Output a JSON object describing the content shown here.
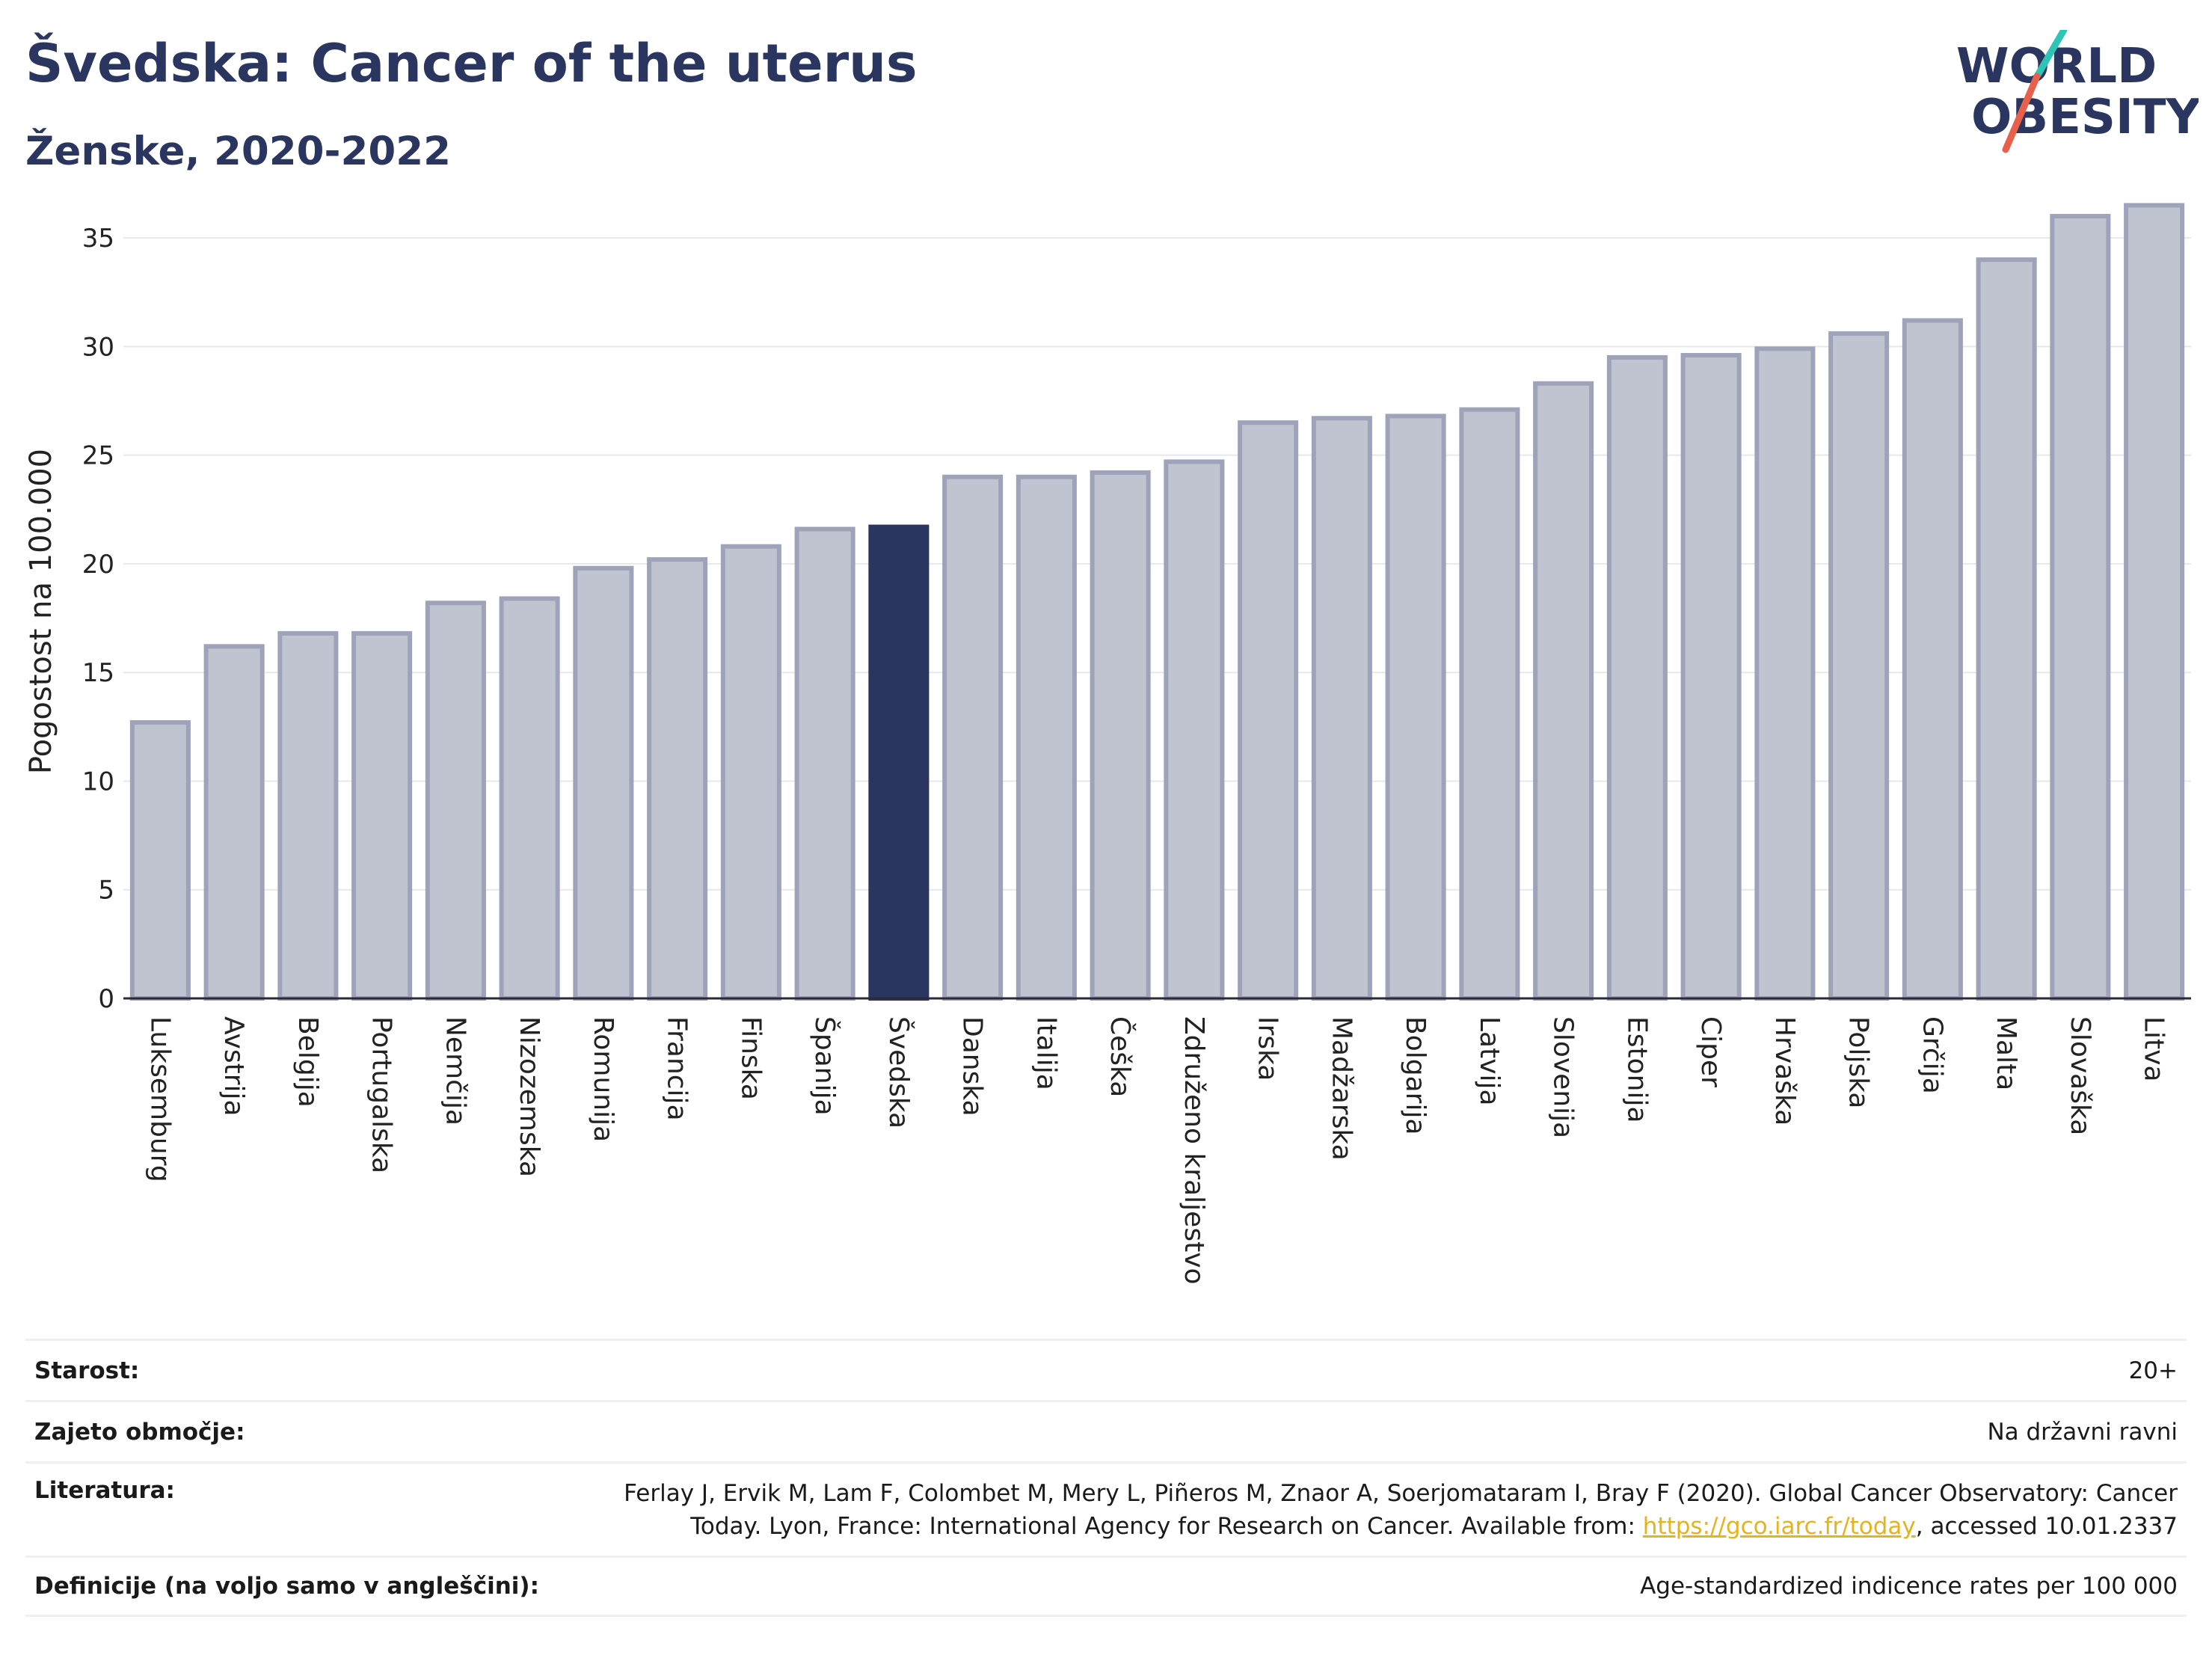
{
  "header": {
    "title": "Švedska: Cancer of the uterus",
    "subtitle": "Ženske, 2020-2022"
  },
  "logo": {
    "line1": "WORLD",
    "line2": "OBESITY",
    "accent_colors": [
      "#2ec4b6",
      "#e8604c"
    ]
  },
  "chart_data": {
    "type": "bar",
    "title": "Švedska: Cancer of the uterus",
    "subtitle": "Ženske, 2020-2022",
    "ylabel": "Pogostost na 100.000",
    "xlabel": "",
    "ylim": [
      0,
      37
    ],
    "yticks": [
      0,
      5,
      10,
      15,
      20,
      25,
      30,
      35
    ],
    "grid": true,
    "highlight": "Švedska",
    "colors": {
      "bar": "#c0c3d0",
      "bar_edge": "#9ea3ba",
      "highlight": "#2a3560"
    },
    "categories": [
      "Luksemburg",
      "Avstrija",
      "Belgija",
      "Portugalska",
      "Nemčija",
      "Nizozemska",
      "Romunija",
      "Francija",
      "Finska",
      "Španija",
      "Švedska",
      "Danska",
      "Italija",
      "Češka",
      "Združeno kraljestvo",
      "Irska",
      "Madžarska",
      "Bolgarija",
      "Latvija",
      "Slovenija",
      "Estonija",
      "Ciper",
      "Hrvaška",
      "Poljska",
      "Grčija",
      "Malta",
      "Slovaška",
      "Litva"
    ],
    "values": [
      12.7,
      16.2,
      16.8,
      16.8,
      18.2,
      18.4,
      19.8,
      20.2,
      20.8,
      21.6,
      21.7,
      24.0,
      24.0,
      24.2,
      24.7,
      26.5,
      26.7,
      26.8,
      27.1,
      28.3,
      29.5,
      29.6,
      29.9,
      30.6,
      31.2,
      34.0,
      36.0,
      36.5
    ]
  },
  "info": {
    "age_label": "Starost:",
    "age_value": "20+",
    "coverage_label": "Zajeto območje:",
    "coverage_value": "Na državni ravni",
    "references_label": "Literatura:",
    "references_text_1": "Ferlay J, Ervik M, Lam F, Colombet M, Mery L, Piñeros M, Znaor A, Soerjomataram I, Bray F (2020). Global Cancer Observatory: Cancer Today. Lyon, France: International Agency for Research on Cancer. Available from: ",
    "references_link": "https://gco.iarc.fr/today",
    "references_text_2": ", accessed 10.01.2337",
    "definitions_label": "Definicije (na voljo samo v angleščini):",
    "definitions_value": "Age-standardized indicence rates per 100 000"
  }
}
